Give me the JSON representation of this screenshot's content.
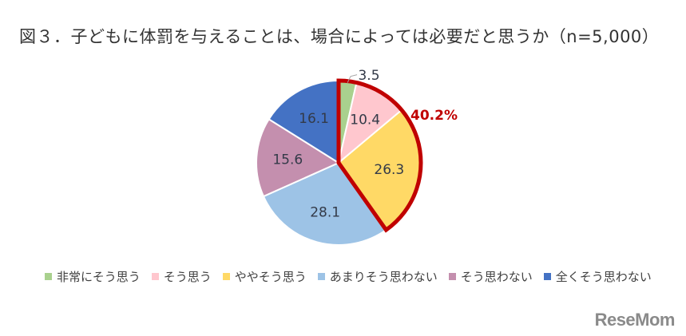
{
  "title": "図３．子どもに体罰を与えることは、場合によっては必要だと思うか（n=5,000）",
  "callout": {
    "label": "40.2%",
    "color": "#c00000"
  },
  "logo": "ReseMom",
  "legend": [
    {
      "label": "非常にそう思う",
      "color": "#a9d18e"
    },
    {
      "label": "そう思う",
      "color": "#ffc7ce"
    },
    {
      "label": "ややそう思う",
      "color": "#ffd966"
    },
    {
      "label": "あまりそう思わない",
      "color": "#9dc3e6"
    },
    {
      "label": "そう思わない",
      "color": "#c48fae"
    },
    {
      "label": "全くそう思わない",
      "color": "#4472c4"
    }
  ],
  "chart_data": {
    "type": "pie",
    "title": "図３．子どもに体罰を与えることは、場合によっては必要だと思うか（n=5,000）",
    "categories": [
      "非常にそう思う",
      "そう思う",
      "ややそう思う",
      "あまりそう思わない",
      "そう思わない",
      "全くそう思わない"
    ],
    "values": [
      3.5,
      10.4,
      26.3,
      28.1,
      15.6,
      16.1
    ],
    "colors": [
      "#a9d18e",
      "#ffc7ce",
      "#ffd966",
      "#9dc3e6",
      "#c48fae",
      "#4472c4"
    ],
    "annotations": [
      {
        "text": "40.2%",
        "note": "sum of 非常にそう思う + そう思う + ややそう思う, outlined in red"
      }
    ],
    "legend_position": "bottom",
    "start_angle": "12 o'clock, clockwise"
  }
}
